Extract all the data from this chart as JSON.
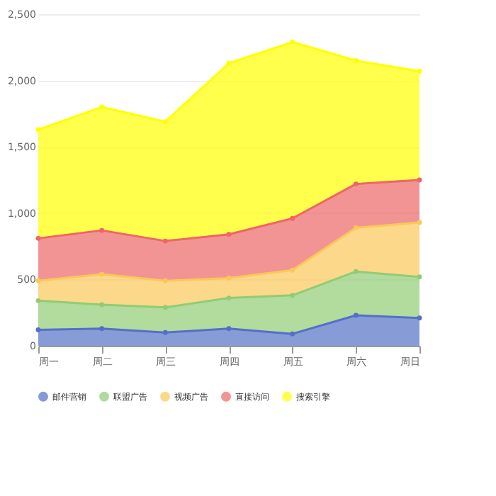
{
  "chart_data": {
    "type": "area",
    "stacked": true,
    "categories": [
      "周一",
      "周二",
      "周三",
      "周四",
      "周五",
      "周六",
      "周日"
    ],
    "series": [
      {
        "name": "邮件营销",
        "color": "#5470c6",
        "values": [
          120,
          130,
          100,
          130,
          90,
          230,
          210
        ]
      },
      {
        "name": "联盟广告",
        "color": "#91cc75",
        "values": [
          220,
          180,
          190,
          230,
          290,
          330,
          310
        ]
      },
      {
        "name": "视频广告",
        "color": "#fac858",
        "values": [
          150,
          230,
          200,
          150,
          190,
          330,
          410
        ]
      },
      {
        "name": "直接访问",
        "color": "#ee6666",
        "values": [
          320,
          330,
          300,
          330,
          390,
          330,
          320
        ]
      },
      {
        "name": "搜索引擎",
        "color": "#ffff00",
        "values": [
          820,
          930,
          900,
          1290,
          1330,
          930,
          820
        ]
      }
    ],
    "ylim": [
      0,
      2500
    ],
    "yticks": [
      0,
      500,
      {
        "value": 1000,
        "label": "1,000"
      },
      {
        "value": 1500,
        "label": "1,500"
      },
      {
        "value": 2000,
        "label": "2,000"
      },
      {
        "value": 2500,
        "label": "2,500"
      }
    ],
    "grid": "y",
    "legend": "bottom",
    "marker": "circle"
  }
}
